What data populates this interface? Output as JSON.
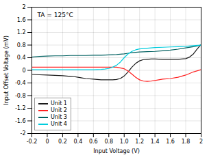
{
  "chart_data": {
    "type": "line",
    "xlabel": "Input Voltage (V)",
    "ylabel": "Input Offset Voltage (mV)",
    "annotation": "TA = 125°C",
    "xlim": [
      -0.2,
      2.0
    ],
    "ylim": [
      -2.0,
      2.0
    ],
    "xticks": [
      -0.2,
      0,
      0.2,
      0.4,
      0.6,
      0.8,
      {
        "value": 1.0,
        "label": "1.0"
      },
      1.2,
      1.4,
      1.6,
      1.8,
      2
    ],
    "yticks": [
      -2,
      -1.6,
      -1.2,
      -0.8,
      -0.4,
      0,
      0.4,
      0.8,
      1.2,
      1.6,
      2
    ],
    "grid": true,
    "legend": "lower left",
    "series": [
      {
        "name": "Unit 1",
        "color": "#1a1a1a",
        "x": [
          -0.2,
          -0.1,
          0.0,
          0.1,
          0.2,
          0.3,
          0.35,
          0.4,
          0.45,
          0.5,
          0.55,
          0.6,
          0.65,
          0.7,
          0.75,
          0.8,
          0.85,
          0.9,
          0.95,
          1.0,
          1.05,
          1.1,
          1.15,
          1.2,
          1.25,
          1.3,
          1.35,
          1.4,
          1.5,
          1.6,
          1.7,
          1.75,
          1.8,
          1.85,
          1.9,
          1.95,
          2.0
        ],
        "values": [
          -0.13,
          -0.14,
          -0.15,
          -0.16,
          -0.17,
          -0.19,
          -0.2,
          -0.22,
          -0.24,
          -0.26,
          -0.27,
          -0.28,
          -0.29,
          -0.3,
          -0.3,
          -0.3,
          -0.3,
          -0.29,
          -0.26,
          -0.18,
          -0.05,
          0.1,
          0.22,
          0.3,
          0.34,
          0.35,
          0.36,
          0.36,
          0.35,
          0.35,
          0.35,
          0.36,
          0.37,
          0.42,
          0.52,
          0.68,
          0.82
        ]
      },
      {
        "name": "Unit 2",
        "color": "#ff2020",
        "x": [
          -0.2,
          -0.1,
          0.0,
          0.1,
          0.2,
          0.3,
          0.4,
          0.5,
          0.6,
          0.7,
          0.8,
          0.9,
          1.0,
          1.05,
          1.1,
          1.15,
          1.2,
          1.25,
          1.3,
          1.35,
          1.4,
          1.5,
          1.6,
          1.7,
          1.8,
          1.9,
          2.0
        ],
        "values": [
          0.1,
          0.1,
          0.1,
          0.1,
          0.1,
          0.1,
          0.1,
          0.1,
          0.1,
          0.1,
          0.1,
          0.1,
          0.05,
          -0.02,
          -0.12,
          -0.22,
          -0.3,
          -0.34,
          -0.35,
          -0.34,
          -0.32,
          -0.28,
          -0.26,
          -0.22,
          -0.15,
          -0.05,
          0.02
        ]
      },
      {
        "name": "Unit 3",
        "color": "#006060",
        "x": [
          -0.2,
          -0.1,
          0.0,
          0.1,
          0.2,
          0.3,
          0.4,
          0.5,
          0.6,
          0.7,
          0.8,
          0.9,
          1.0,
          1.05,
          1.1,
          1.2,
          1.3,
          1.4,
          1.5,
          1.6,
          1.7,
          1.8,
          1.9,
          2.0
        ],
        "values": [
          0.42,
          0.44,
          0.45,
          0.46,
          0.46,
          0.47,
          0.47,
          0.47,
          0.48,
          0.48,
          0.49,
          0.5,
          0.52,
          0.54,
          0.56,
          0.58,
          0.59,
          0.6,
          0.62,
          0.64,
          0.67,
          0.71,
          0.75,
          0.8
        ]
      },
      {
        "name": "Unit 4",
        "color": "#00ccdd",
        "x": [
          -0.2,
          -0.1,
          0.0,
          0.1,
          0.2,
          0.3,
          0.4,
          0.5,
          0.6,
          0.7,
          0.75,
          0.8,
          0.85,
          0.9,
          0.95,
          1.0,
          1.05,
          1.1,
          1.15,
          1.2,
          1.25,
          1.3,
          1.4,
          1.5,
          1.6,
          1.7,
          1.8,
          1.9,
          2.0
        ],
        "values": [
          0.02,
          0.02,
          0.02,
          0.02,
          0.02,
          0.02,
          0.02,
          0.02,
          0.02,
          0.03,
          0.04,
          0.06,
          0.1,
          0.16,
          0.26,
          0.4,
          0.52,
          0.6,
          0.65,
          0.68,
          0.69,
          0.7,
          0.72,
          0.73,
          0.74,
          0.75,
          0.76,
          0.78,
          0.8
        ]
      }
    ]
  }
}
